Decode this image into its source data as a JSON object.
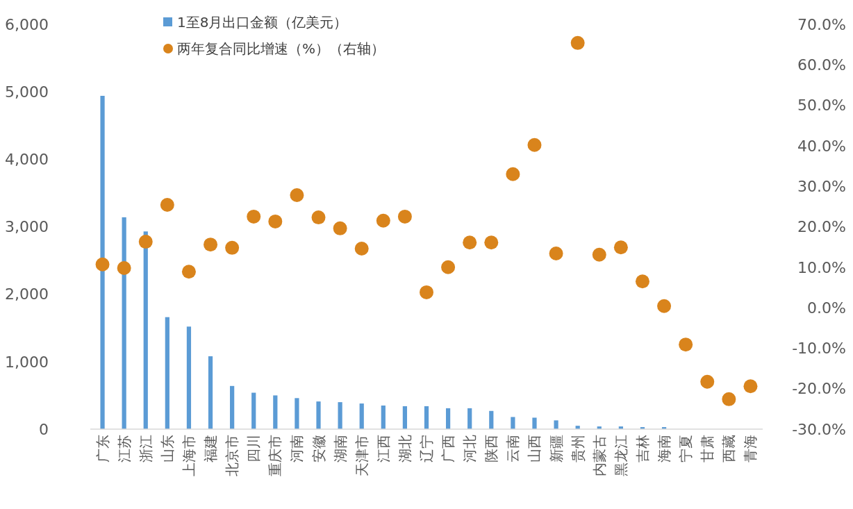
{
  "chart_data": {
    "type": "bar",
    "categories": [
      "广东",
      "江苏",
      "浙江",
      "山东",
      "上海市",
      "福建",
      "北京市",
      "四川",
      "重庆市",
      "河南",
      "安徽",
      "湖南",
      "天津市",
      "江西",
      "湖北",
      "辽宁",
      "广西",
      "河北",
      "陕西",
      "云南",
      "山西",
      "新疆",
      "贵州",
      "内蒙古",
      "黑龙江",
      "吉林",
      "海南",
      "宁夏",
      "甘肃",
      "西藏",
      "青海"
    ],
    "series": [
      {
        "name": "1至8月出口金额（亿美元）",
        "color": "#5b9bd5",
        "values": [
          4940,
          3140,
          2930,
          1660,
          1520,
          1080,
          640,
          540,
          500,
          460,
          410,
          400,
          380,
          350,
          340,
          340,
          310,
          310,
          270,
          180,
          170,
          130,
          50,
          40,
          40,
          30,
          30,
          0,
          0,
          0,
          0
        ]
      },
      {
        "name": "两年复合同比增速（%）（右轴）",
        "type": "scatter",
        "axis": "y2",
        "color": "#d9841c",
        "values": [
          10.7,
          9.8,
          16.3,
          25.4,
          8.9,
          15.6,
          14.8,
          22.5,
          21.3,
          27.8,
          22.3,
          19.6,
          14.6,
          21.5,
          22.5,
          3.8,
          10.0,
          16.1,
          16.1,
          33.0,
          40.2,
          13.4,
          65.4,
          13.1,
          14.9,
          6.5,
          0.4,
          -9.1,
          -18.3,
          -22.6,
          -19.4
        ]
      }
    ],
    "ylim": [
      0,
      6000
    ],
    "yticks": [
      0,
      {
        "value": 1000,
        "label": "1,000"
      },
      {
        "value": 2000,
        "label": "2,000"
      },
      {
        "value": 3000,
        "label": "3,000"
      },
      {
        "value": 4000,
        "label": "4,000"
      },
      {
        "value": 5000,
        "label": "5,000"
      },
      {
        "value": 6000,
        "label": "6,000"
      }
    ],
    "y2lim": [
      -30,
      70
    ],
    "y2ticks": [
      {
        "value": -30,
        "label": "-30.0%"
      },
      {
        "value": -20,
        "label": "-20.0%"
      },
      {
        "value": -10,
        "label": "-10.0%"
      },
      {
        "value": 0,
        "label": "0.0%"
      },
      {
        "value": 10,
        "label": "10.0%"
      },
      {
        "value": 20,
        "label": "20.0%"
      },
      {
        "value": 30,
        "label": "30.0%"
      },
      {
        "value": 40,
        "label": "40.0%"
      },
      {
        "value": 50,
        "label": "50.0%"
      },
      {
        "value": 60,
        "label": "60.0%"
      },
      {
        "value": 70,
        "label": "70.0%"
      }
    ],
    "marker": "circle",
    "legend": "top left",
    "grid": false
  }
}
